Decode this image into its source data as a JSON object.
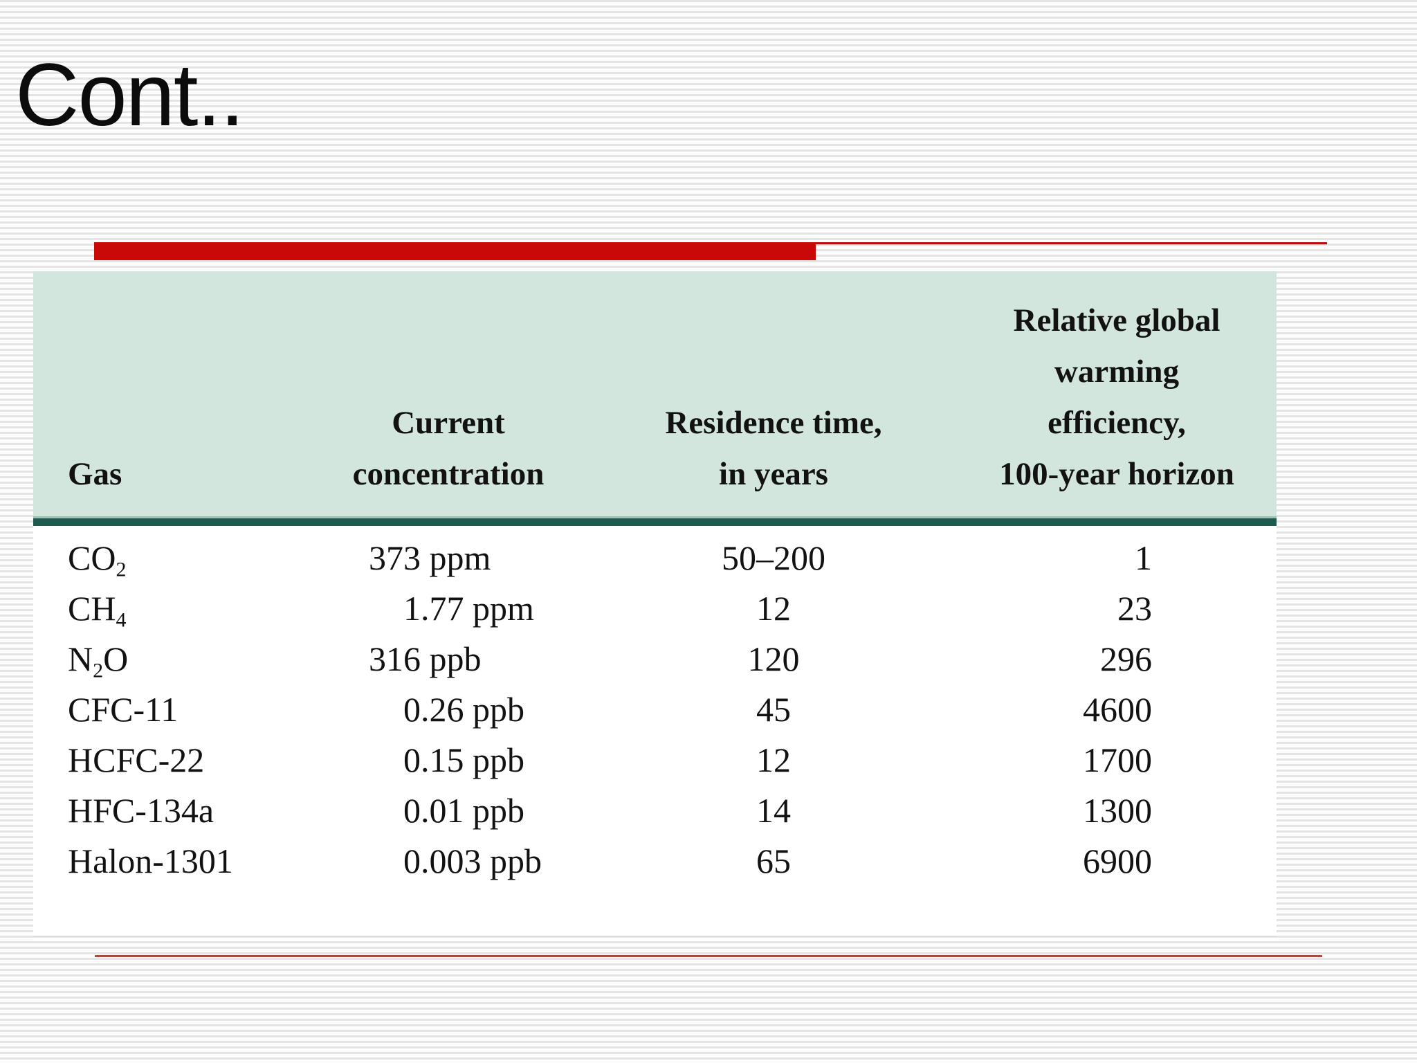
{
  "slide": {
    "title": "Cont.."
  },
  "colors": {
    "accent_red": "#c90808",
    "thin_red": "#bd0b0b",
    "header_bg": "#d2e6dd",
    "header_rule": "#1e5a4d",
    "bottom_rule": "#a94a44",
    "stripe": "#e4e4e4",
    "text": "#121212"
  },
  "table": {
    "header": {
      "gas": [
        "Gas"
      ],
      "concentration": [
        "Current",
        "concentration"
      ],
      "residence": [
        "Residence time,",
        "in years"
      ],
      "gwp": [
        "Relative global",
        "warming",
        "efficiency,",
        "100-year horizon"
      ]
    },
    "rows": [
      {
        "gas": {
          "name": "CO2",
          "parts": [
            {
              "text": "CO"
            },
            {
              "text": "2",
              "sub": true
            }
          ]
        },
        "concentration": "373 ppm",
        "residence": "50–200",
        "gwp": "1"
      },
      {
        "gas": {
          "name": "CH4",
          "parts": [
            {
              "text": "CH"
            },
            {
              "text": "4",
              "sub": true
            }
          ]
        },
        "concentration": "1.77 ppm",
        "residence": "12",
        "gwp": "23"
      },
      {
        "gas": {
          "name": "N2O",
          "parts": [
            {
              "text": "N"
            },
            {
              "text": "2",
              "sub": true
            },
            {
              "text": "O"
            }
          ]
        },
        "concentration": "316 ppb",
        "residence": "120",
        "gwp": "296"
      },
      {
        "gas": {
          "name": "CFC-11",
          "parts": [
            {
              "text": "CFC-11"
            }
          ]
        },
        "concentration": "0.26 ppb",
        "residence": "45",
        "gwp": "4600"
      },
      {
        "gas": {
          "name": "HCFC-22",
          "parts": [
            {
              "text": "HCFC-22"
            }
          ]
        },
        "concentration": "0.15 ppb",
        "residence": "12",
        "gwp": "1700"
      },
      {
        "gas": {
          "name": "HFC-134a",
          "parts": [
            {
              "text": "HFC-134a"
            }
          ]
        },
        "concentration": "0.01 ppb",
        "residence": "14",
        "gwp": "1300"
      },
      {
        "gas": {
          "name": "Halon-1301",
          "parts": [
            {
              "text": "Halon-1301"
            }
          ]
        },
        "concentration": "0.003 ppb",
        "residence": "65",
        "gwp": "6900"
      }
    ]
  }
}
